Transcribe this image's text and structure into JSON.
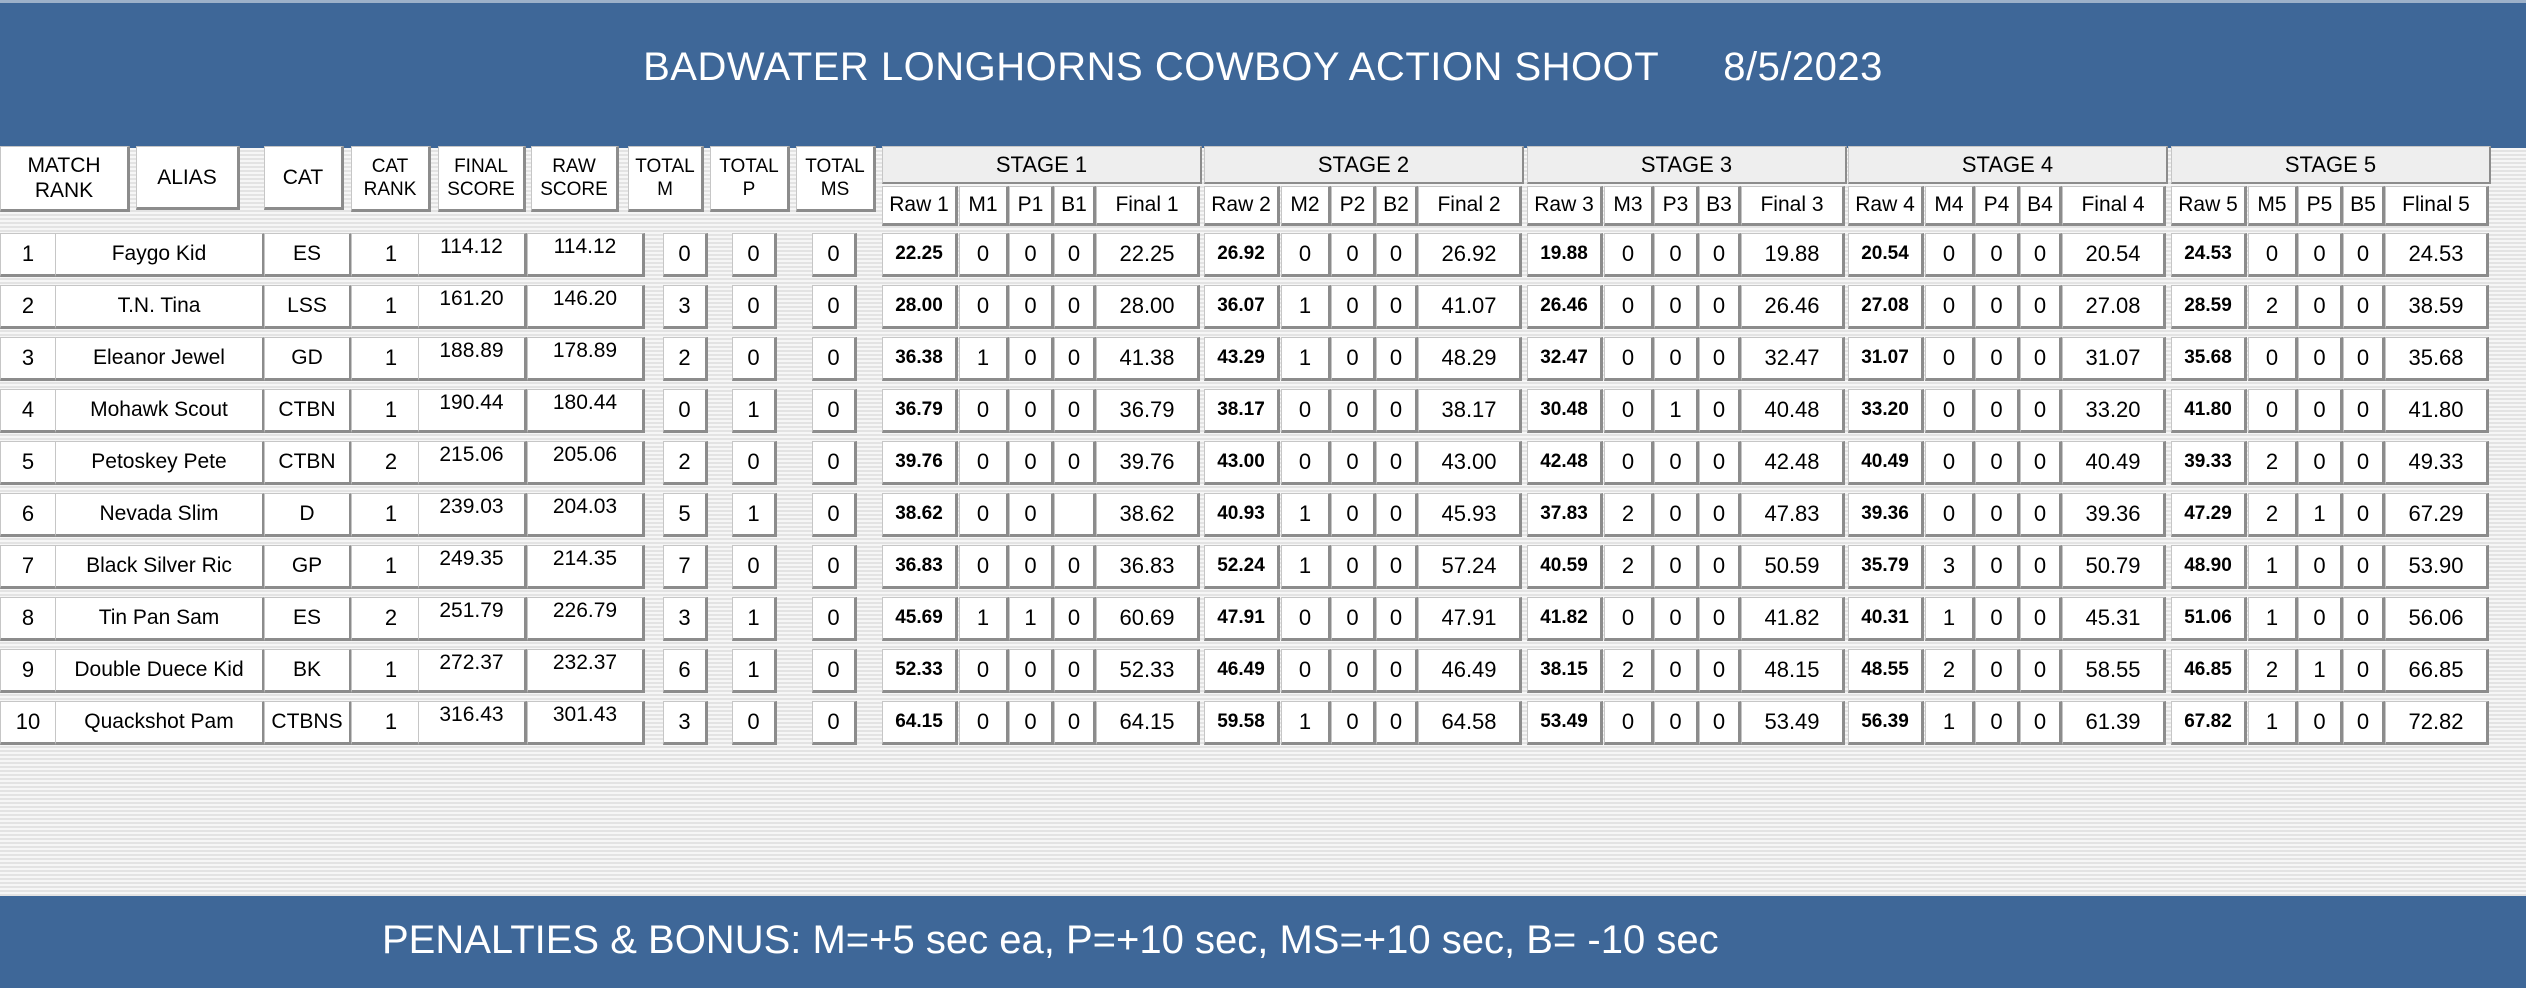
{
  "title": {
    "event": "BADWATER LONGHORNS COWBOY ACTION SHOOT",
    "date": "8/5/2023"
  },
  "headers": {
    "match_rank": [
      "MATCH",
      "RANK"
    ],
    "alias": "ALIAS",
    "cat": "CAT",
    "cat_rank": [
      "CAT",
      "RANK"
    ],
    "final_score": [
      "FINAL",
      "SCORE"
    ],
    "raw_score": [
      "RAW",
      "SCORE"
    ],
    "total_m": [
      "TOTAL",
      "M"
    ],
    "total_p": [
      "TOTAL",
      "P"
    ],
    "total_ms": [
      "TOTAL",
      "MS"
    ]
  },
  "stages": [
    {
      "title": "STAGE 1",
      "cols": [
        "Raw 1",
        "M1",
        "P1",
        "B1",
        "Final 1"
      ]
    },
    {
      "title": "STAGE 2",
      "cols": [
        "Raw 2",
        "M2",
        "P2",
        "B2",
        "Final 2"
      ]
    },
    {
      "title": "STAGE 3",
      "cols": [
        "Raw 3",
        "M3",
        "P3",
        "B3",
        "Final 3"
      ]
    },
    {
      "title": "STAGE 4",
      "cols": [
        "Raw 4",
        "M4",
        "P4",
        "B4",
        "Final 4"
      ]
    },
    {
      "title": "STAGE 5",
      "cols": [
        "Raw 5",
        "M5",
        "P5",
        "B5",
        "Flinal 5"
      ]
    }
  ],
  "rows": [
    {
      "rank": "1",
      "alias": "Faygo Kid",
      "cat": "ES",
      "cat_rank": "1",
      "final": "114.12",
      "raw": "114.12",
      "tm": "0",
      "tp": "0",
      "tms": "0",
      "stages": [
        [
          "22.25",
          "0",
          "0",
          "0",
          "22.25"
        ],
        [
          "26.92",
          "0",
          "0",
          "0",
          "26.92"
        ],
        [
          "19.88",
          "0",
          "0",
          "0",
          "19.88"
        ],
        [
          "20.54",
          "0",
          "0",
          "0",
          "20.54"
        ],
        [
          "24.53",
          "0",
          "0",
          "0",
          "24.53"
        ]
      ]
    },
    {
      "rank": "2",
      "alias": "T.N. Tina",
      "cat": "LSS",
      "cat_rank": "1",
      "final": "161.20",
      "raw": "146.20",
      "tm": "3",
      "tp": "0",
      "tms": "0",
      "stages": [
        [
          "28.00",
          "0",
          "0",
          "0",
          "28.00"
        ],
        [
          "36.07",
          "1",
          "0",
          "0",
          "41.07"
        ],
        [
          "26.46",
          "0",
          "0",
          "0",
          "26.46"
        ],
        [
          "27.08",
          "0",
          "0",
          "0",
          "27.08"
        ],
        [
          "28.59",
          "2",
          "0",
          "0",
          "38.59"
        ]
      ]
    },
    {
      "rank": "3",
      "alias": "Eleanor Jewel",
      "cat": "GD",
      "cat_rank": "1",
      "final": "188.89",
      "raw": "178.89",
      "tm": "2",
      "tp": "0",
      "tms": "0",
      "stages": [
        [
          "36.38",
          "1",
          "0",
          "0",
          "41.38"
        ],
        [
          "43.29",
          "1",
          "0",
          "0",
          "48.29"
        ],
        [
          "32.47",
          "0",
          "0",
          "0",
          "32.47"
        ],
        [
          "31.07",
          "0",
          "0",
          "0",
          "31.07"
        ],
        [
          "35.68",
          "0",
          "0",
          "0",
          "35.68"
        ]
      ]
    },
    {
      "rank": "4",
      "alias": "Mohawk Scout",
      "cat": "CTBN",
      "cat_rank": "1",
      "final": "190.44",
      "raw": "180.44",
      "tm": "0",
      "tp": "1",
      "tms": "0",
      "stages": [
        [
          "36.79",
          "0",
          "0",
          "0",
          "36.79"
        ],
        [
          "38.17",
          "0",
          "0",
          "0",
          "38.17"
        ],
        [
          "30.48",
          "0",
          "1",
          "0",
          "40.48"
        ],
        [
          "33.20",
          "0",
          "0",
          "0",
          "33.20"
        ],
        [
          "41.80",
          "0",
          "0",
          "0",
          "41.80"
        ]
      ]
    },
    {
      "rank": "5",
      "alias": "Petoskey Pete",
      "cat": "CTBN",
      "cat_rank": "2",
      "final": "215.06",
      "raw": "205.06",
      "tm": "2",
      "tp": "0",
      "tms": "0",
      "stages": [
        [
          "39.76",
          "0",
          "0",
          "0",
          "39.76"
        ],
        [
          "43.00",
          "0",
          "0",
          "0",
          "43.00"
        ],
        [
          "42.48",
          "0",
          "0",
          "0",
          "42.48"
        ],
        [
          "40.49",
          "0",
          "0",
          "0",
          "40.49"
        ],
        [
          "39.33",
          "2",
          "0",
          "0",
          "49.33"
        ]
      ]
    },
    {
      "rank": "6",
      "alias": "Nevada Slim",
      "cat": "D",
      "cat_rank": "1",
      "final": "239.03",
      "raw": "204.03",
      "tm": "5",
      "tp": "1",
      "tms": "0",
      "stages": [
        [
          "38.62",
          "0",
          "0",
          "",
          "38.62"
        ],
        [
          "40.93",
          "1",
          "0",
          "0",
          "45.93"
        ],
        [
          "37.83",
          "2",
          "0",
          "0",
          "47.83"
        ],
        [
          "39.36",
          "0",
          "0",
          "0",
          "39.36"
        ],
        [
          "47.29",
          "2",
          "1",
          "0",
          "67.29"
        ]
      ]
    },
    {
      "rank": "7",
      "alias": "Black Silver Ric",
      "cat": "GP",
      "cat_rank": "1",
      "final": "249.35",
      "raw": "214.35",
      "tm": "7",
      "tp": "0",
      "tms": "0",
      "stages": [
        [
          "36.83",
          "0",
          "0",
          "0",
          "36.83"
        ],
        [
          "52.24",
          "1",
          "0",
          "0",
          "57.24"
        ],
        [
          "40.59",
          "2",
          "0",
          "0",
          "50.59"
        ],
        [
          "35.79",
          "3",
          "0",
          "0",
          "50.79"
        ],
        [
          "48.90",
          "1",
          "0",
          "0",
          "53.90"
        ]
      ]
    },
    {
      "rank": "8",
      "alias": "Tin Pan Sam",
      "cat": "ES",
      "cat_rank": "2",
      "final": "251.79",
      "raw": "226.79",
      "tm": "3",
      "tp": "1",
      "tms": "0",
      "stages": [
        [
          "45.69",
          "1",
          "1",
          "0",
          "60.69"
        ],
        [
          "47.91",
          "0",
          "0",
          "0",
          "47.91"
        ],
        [
          "41.82",
          "0",
          "0",
          "0",
          "41.82"
        ],
        [
          "40.31",
          "1",
          "0",
          "0",
          "45.31"
        ],
        [
          "51.06",
          "1",
          "0",
          "0",
          "56.06"
        ]
      ]
    },
    {
      "rank": "9",
      "alias": "Double Duece Kid",
      "cat": "BK",
      "cat_rank": "1",
      "final": "272.37",
      "raw": "232.37",
      "tm": "6",
      "tp": "1",
      "tms": "0",
      "stages": [
        [
          "52.33",
          "0",
          "0",
          "0",
          "52.33"
        ],
        [
          "46.49",
          "0",
          "0",
          "0",
          "46.49"
        ],
        [
          "38.15",
          "2",
          "0",
          "0",
          "48.15"
        ],
        [
          "48.55",
          "2",
          "0",
          "0",
          "58.55"
        ],
        [
          "46.85",
          "2",
          "1",
          "0",
          "66.85"
        ]
      ]
    },
    {
      "rank": "10",
      "alias": "Quackshot Pam",
      "cat": "CTBNS",
      "cat_rank": "1",
      "final": "316.43",
      "raw": "301.43",
      "tm": "3",
      "tp": "0",
      "tms": "0",
      "stages": [
        [
          "64.15",
          "0",
          "0",
          "0",
          "64.15"
        ],
        [
          "59.58",
          "1",
          "0",
          "0",
          "64.58"
        ],
        [
          "53.49",
          "0",
          "0",
          "0",
          "53.49"
        ],
        [
          "56.39",
          "1",
          "0",
          "0",
          "61.39"
        ],
        [
          "67.82",
          "1",
          "0",
          "0",
          "72.82"
        ]
      ]
    }
  ],
  "footer": {
    "penalties": "PENALTIES & BONUS:  M=+5 sec ea, P=+10 sec, MS=+10 sec, B= -10 sec"
  },
  "colors": {
    "header_bg": "#3e6798",
    "text_on_header": "#ffffff"
  }
}
